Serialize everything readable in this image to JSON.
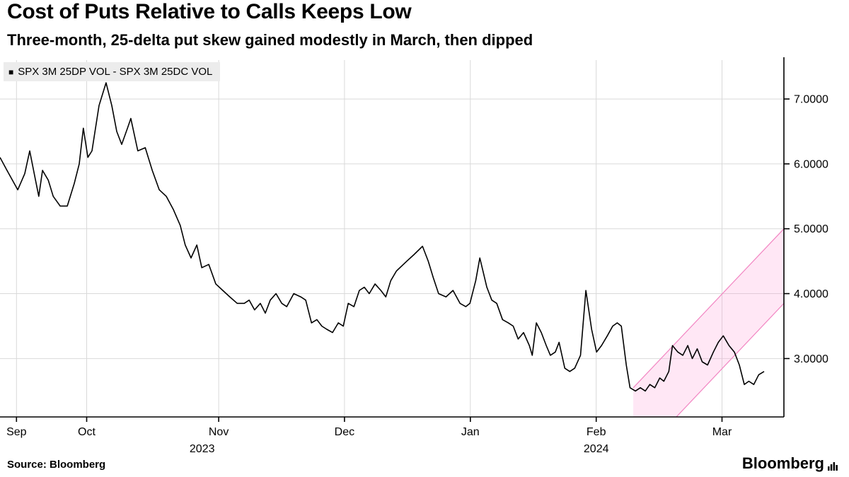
{
  "title": "Cost of Puts Relative to Calls Keeps Low",
  "subtitle": "Three-month, 25-delta put skew gained modestly in March, then dipped",
  "legend": {
    "marker": "■",
    "label": "SPX 3M 25DP VOL - SPX 3M 25DC VOL"
  },
  "source_label": "Source: Bloomberg",
  "brand": "Bloomberg",
  "colors": {
    "line": "#000000",
    "grid": "#d9d9d9",
    "axis": "#000000",
    "legend_bg": "#ececec",
    "channel_fill": "#ff9fd6",
    "channel_stroke": "#f285c2"
  },
  "chart_data": {
    "type": "line",
    "title": "Cost of Puts Relative to Calls Keeps Low",
    "subtitle": "Three-month, 25-delta put skew gained modestly in March, then dipped",
    "legend_entries": [
      "SPX 3M 25DP VOL - SPX 3M 25DC VOL"
    ],
    "legend_position": "top-left",
    "grid": true,
    "x_axis": {
      "unit": "days from 2023-09-08",
      "total_days": 190,
      "months": [
        {
          "label": "Sep",
          "day": 4
        },
        {
          "label": "Oct",
          "day": 21
        },
        {
          "label": "Nov",
          "day": 53
        },
        {
          "label": "Dec",
          "day": 83.5
        },
        {
          "label": "Jan",
          "day": 114
        },
        {
          "label": "Feb",
          "day": 144.5
        },
        {
          "label": "Mar",
          "day": 175
        }
      ],
      "years": [
        {
          "label": "2023",
          "day": 49
        },
        {
          "label": "2024",
          "day": 144.5
        }
      ]
    },
    "y_axis": {
      "min": 2.1,
      "max": 7.6,
      "ticks": [
        {
          "value": 3,
          "label": "3.0000"
        },
        {
          "value": 4,
          "label": "4.0000"
        },
        {
          "value": 5,
          "label": "5.0000"
        },
        {
          "value": 6,
          "label": "6.0000"
        },
        {
          "value": 7,
          "label": "7.0000"
        }
      ]
    },
    "series": [
      {
        "name": "SPX 3M 25DP VOL - SPX 3M 25DC VOL",
        "color": "#000000",
        "points": [
          [
            0,
            6.1
          ],
          [
            1.7,
            5.9
          ],
          [
            4.3,
            5.6
          ],
          [
            6,
            5.85
          ],
          [
            7.2,
            6.2
          ],
          [
            8.6,
            5.75
          ],
          [
            9.4,
            5.5
          ],
          [
            10.3,
            5.9
          ],
          [
            11.7,
            5.75
          ],
          [
            12.9,
            5.5
          ],
          [
            14.6,
            5.35
          ],
          [
            16.3,
            5.35
          ],
          [
            18,
            5.7
          ],
          [
            19.2,
            6.0
          ],
          [
            20.2,
            6.55
          ],
          [
            21.3,
            6.1
          ],
          [
            22.3,
            6.2
          ],
          [
            24,
            6.9
          ],
          [
            25.7,
            7.25
          ],
          [
            27.1,
            6.9
          ],
          [
            28.3,
            6.5
          ],
          [
            29.5,
            6.3
          ],
          [
            30.9,
            6.55
          ],
          [
            31.7,
            6.7
          ],
          [
            33.4,
            6.2
          ],
          [
            35.2,
            6.25
          ],
          [
            36.9,
            5.9
          ],
          [
            38.6,
            5.6
          ],
          [
            40.3,
            5.5
          ],
          [
            42,
            5.3
          ],
          [
            43.7,
            5.05
          ],
          [
            44.9,
            4.75
          ],
          [
            46.3,
            4.55
          ],
          [
            47.7,
            4.75
          ],
          [
            48.9,
            4.4
          ],
          [
            50.6,
            4.45
          ],
          [
            52.3,
            4.15
          ],
          [
            54,
            4.05
          ],
          [
            55.7,
            3.95
          ],
          [
            57.5,
            3.85
          ],
          [
            59.2,
            3.85
          ],
          [
            60.4,
            3.9
          ],
          [
            61.7,
            3.75
          ],
          [
            63.1,
            3.85
          ],
          [
            64.3,
            3.7
          ],
          [
            65.5,
            3.9
          ],
          [
            66.9,
            4.0
          ],
          [
            68.3,
            3.85
          ],
          [
            69.5,
            3.8
          ],
          [
            71.2,
            4.0
          ],
          [
            72.9,
            3.95
          ],
          [
            74.1,
            3.9
          ],
          [
            75.5,
            3.55
          ],
          [
            76.8,
            3.6
          ],
          [
            78,
            3.5
          ],
          [
            79.2,
            3.45
          ],
          [
            80.6,
            3.4
          ],
          [
            82,
            3.55
          ],
          [
            83.2,
            3.5
          ],
          [
            84.4,
            3.85
          ],
          [
            85.8,
            3.8
          ],
          [
            87.1,
            4.05
          ],
          [
            88.3,
            4.1
          ],
          [
            89.5,
            4.0
          ],
          [
            90.9,
            4.15
          ],
          [
            92.3,
            4.05
          ],
          [
            93.5,
            3.95
          ],
          [
            94.7,
            4.2
          ],
          [
            96.1,
            4.35
          ],
          [
            98.6,
            4.5
          ],
          [
            100.3,
            4.6
          ],
          [
            102.4,
            4.73
          ],
          [
            103.8,
            4.5
          ],
          [
            105,
            4.25
          ],
          [
            106.3,
            4.0
          ],
          [
            108.1,
            3.95
          ],
          [
            109.8,
            4.05
          ],
          [
            111.5,
            3.85
          ],
          [
            112.9,
            3.8
          ],
          [
            113.9,
            3.85
          ],
          [
            115.3,
            4.2
          ],
          [
            116.3,
            4.55
          ],
          [
            118,
            4.1
          ],
          [
            119.2,
            3.9
          ],
          [
            120.4,
            3.85
          ],
          [
            121.8,
            3.6
          ],
          [
            123.2,
            3.55
          ],
          [
            124.4,
            3.5
          ],
          [
            125.6,
            3.3
          ],
          [
            126.9,
            3.4
          ],
          [
            128.3,
            3.2
          ],
          [
            129,
            3.05
          ],
          [
            130,
            3.55
          ],
          [
            131.2,
            3.4
          ],
          [
            132.4,
            3.2
          ],
          [
            133.4,
            3.05
          ],
          [
            134.6,
            3.1
          ],
          [
            135.5,
            3.25
          ],
          [
            136.9,
            2.85
          ],
          [
            138.1,
            2.8
          ],
          [
            139.3,
            2.85
          ],
          [
            140.7,
            3.05
          ],
          [
            142,
            4.05
          ],
          [
            143.4,
            3.45
          ],
          [
            144.6,
            3.1
          ],
          [
            145.8,
            3.2
          ],
          [
            147.2,
            3.35
          ],
          [
            148.5,
            3.5
          ],
          [
            149.6,
            3.55
          ],
          [
            150.6,
            3.5
          ],
          [
            151.8,
            2.9
          ],
          [
            152.7,
            2.55
          ],
          [
            154,
            2.5
          ],
          [
            155.2,
            2.55
          ],
          [
            156.4,
            2.5
          ],
          [
            157.5,
            2.6
          ],
          [
            158.7,
            2.55
          ],
          [
            159.9,
            2.7
          ],
          [
            160.9,
            2.65
          ],
          [
            162.1,
            2.8
          ],
          [
            163,
            3.2
          ],
          [
            164.3,
            3.1
          ],
          [
            165.5,
            3.05
          ],
          [
            166.7,
            3.2
          ],
          [
            167.8,
            3.0
          ],
          [
            169,
            3.15
          ],
          [
            170.2,
            2.95
          ],
          [
            171.5,
            2.9
          ],
          [
            172.9,
            3.1
          ],
          [
            174.1,
            3.25
          ],
          [
            175.3,
            3.35
          ],
          [
            176.7,
            3.2
          ],
          [
            178,
            3.1
          ],
          [
            179.2,
            2.9
          ],
          [
            180.4,
            2.6
          ],
          [
            181.5,
            2.65
          ],
          [
            182.7,
            2.6
          ],
          [
            183.9,
            2.75
          ],
          [
            185.2,
            2.8
          ]
        ]
      }
    ],
    "annotation_channel": {
      "description": "upward-sloping pink trend channel over Feb-Mar 2024",
      "fill": "#ff9fd6",
      "fill_opacity": 0.25,
      "stroke": "#f285c2",
      "upper": [
        [
          153.5,
          2.55
        ],
        [
          190,
          5.0
        ]
      ],
      "lower": [
        [
          153.5,
          1.4
        ],
        [
          190,
          3.85
        ]
      ]
    }
  }
}
